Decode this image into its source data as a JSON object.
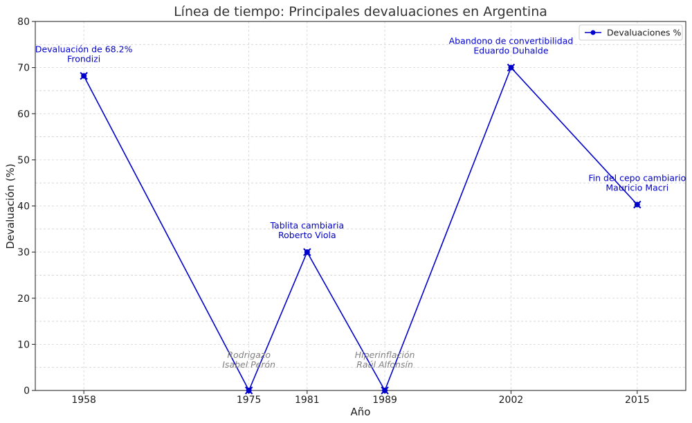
{
  "chart_data": {
    "type": "line",
    "title": "Línea de tiempo: Principales devaluaciones en Argentina",
    "xlabel": "Año",
    "ylabel": "Devaluación (%)",
    "ylim": [
      0,
      80
    ],
    "yticks": [
      "0",
      "10",
      "20",
      "30",
      "40",
      "50",
      "60",
      "70",
      "80"
    ],
    "grid": true,
    "legend_position": "top-right",
    "categories": [
      "1958",
      "1975",
      "1981",
      "1989",
      "2002",
      "2015"
    ],
    "x": [
      1958,
      1975,
      1981,
      1989,
      2002,
      2015
    ],
    "xlim": [
      1953,
      2020
    ],
    "series": [
      {
        "name": "Devaluaciones %",
        "color": "#0000cc",
        "values": [
          68.2,
          0,
          30,
          0,
          70,
          40.3
        ]
      }
    ],
    "annotations": [
      {
        "x": 1958,
        "y": 68.2,
        "lines": [
          "Devaluación de 68.2%",
          "Frondizi"
        ],
        "color": "#0000cc"
      },
      {
        "x": 1975,
        "y": 0,
        "lines": [
          "Rodrigazo",
          "Isabel Perón"
        ],
        "color": "#808080",
        "italic": true
      },
      {
        "x": 1981,
        "y": 30,
        "lines": [
          "Tablita cambiaria",
          "Roberto Viola"
        ],
        "color": "#0000cc"
      },
      {
        "x": 1989,
        "y": 0,
        "lines": [
          "Hiperinflación",
          "Raúl Alfonsín"
        ],
        "color": "#808080",
        "italic": true
      },
      {
        "x": 2002,
        "y": 70,
        "lines": [
          "Abandono de convertibilidad",
          "Eduardo Duhalde"
        ],
        "color": "#0000cc"
      },
      {
        "x": 2015,
        "y": 40.3,
        "lines": [
          "Fin del cepo cambiario",
          "Mauricio Macri"
        ],
        "color": "#0000cc"
      }
    ]
  }
}
